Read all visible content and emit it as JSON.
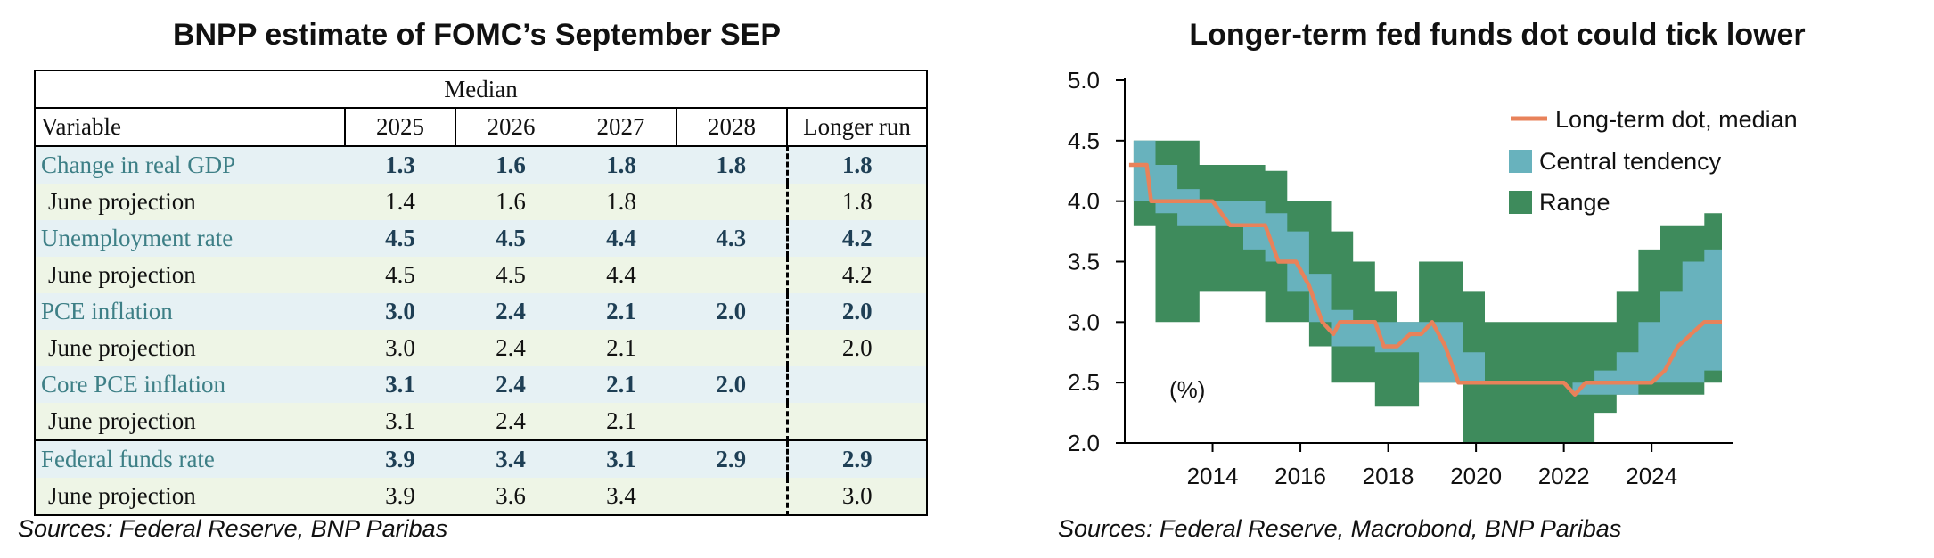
{
  "left": {
    "title": "BNPP estimate of FOMC’s September SEP",
    "source": "Sources: Federal Reserve, BNP Paribas",
    "table": {
      "group_header": "Median",
      "columns": [
        "Variable",
        "2025",
        "2026",
        "2027",
        "2028",
        "Longer run"
      ],
      "rows": [
        {
          "label": "Change in real GDP",
          "kind": "main",
          "values": [
            "1.3",
            "1.6",
            "1.8",
            "1.8",
            "1.8"
          ]
        },
        {
          "label": "June projection",
          "kind": "june",
          "values": [
            "1.4",
            "1.6",
            "1.8",
            "",
            "1.8"
          ]
        },
        {
          "label": "Unemployment rate",
          "kind": "main",
          "values": [
            "4.5",
            "4.5",
            "4.4",
            "4.3",
            "4.2"
          ]
        },
        {
          "label": "June projection",
          "kind": "june",
          "values": [
            "4.5",
            "4.5",
            "4.4",
            "",
            "4.2"
          ]
        },
        {
          "label": "PCE inflation",
          "kind": "main",
          "values": [
            "3.0",
            "2.4",
            "2.1",
            "2.0",
            "2.0"
          ]
        },
        {
          "label": "June projection",
          "kind": "june",
          "values": [
            "3.0",
            "2.4",
            "2.1",
            "",
            "2.0"
          ]
        },
        {
          "label": "Core PCE inflation",
          "kind": "main",
          "values": [
            "3.1",
            "2.4",
            "2.1",
            "2.0",
            ""
          ]
        },
        {
          "label": "June projection",
          "kind": "june",
          "values": [
            "3.1",
            "2.4",
            "2.1",
            "",
            ""
          ]
        },
        {
          "label": "Federal funds rate",
          "kind": "main",
          "values": [
            "3.9",
            "3.4",
            "3.1",
            "2.9",
            "2.9"
          ]
        },
        {
          "label": "June projection",
          "kind": "june",
          "values": [
            "3.9",
            "3.6",
            "3.4",
            "",
            "3.0"
          ]
        }
      ]
    }
  },
  "right": {
    "title": "Longer-term fed funds dot could tick lower",
    "source": "Sources: Federal Reserve, Macrobond, BNP Paribas",
    "unit_label": "(%)",
    "legend": [
      {
        "label": "Long-term dot, median",
        "color": "#e8825a",
        "kind": "line"
      },
      {
        "label": "Central tendency",
        "color": "#68b2bd",
        "kind": "box"
      },
      {
        "label": "Range",
        "color": "#3e8b5c",
        "kind": "box"
      }
    ]
  },
  "chart_data": [
    {
      "type": "table",
      "title": "BNPP estimate of FOMC’s September SEP",
      "columns": [
        "Variable",
        "2025",
        "2026",
        "2027",
        "2028",
        "Longer run"
      ],
      "rows": [
        [
          "Change in real GDP",
          "1.3",
          "1.6",
          "1.8",
          "1.8",
          "1.8"
        ],
        [
          "June projection",
          "1.4",
          "1.6",
          "1.8",
          "",
          "1.8"
        ],
        [
          "Unemployment rate",
          "4.5",
          "4.5",
          "4.4",
          "4.3",
          "4.2"
        ],
        [
          "June projection",
          "4.5",
          "4.5",
          "4.4",
          "",
          "4.2"
        ],
        [
          "PCE inflation",
          "3.0",
          "2.4",
          "2.1",
          "2.0",
          "2.0"
        ],
        [
          "June projection",
          "3.0",
          "2.4",
          "2.1",
          "",
          "2.0"
        ],
        [
          "Core PCE inflation",
          "3.1",
          "2.4",
          "2.1",
          "2.0",
          ""
        ],
        [
          "June projection",
          "3.1",
          "2.4",
          "2.1",
          "",
          ""
        ],
        [
          "Federal funds rate",
          "3.9",
          "3.4",
          "3.1",
          "2.9",
          "2.9"
        ],
        [
          "June projection",
          "3.9",
          "3.6",
          "3.4",
          "",
          "3.0"
        ]
      ]
    },
    {
      "type": "area",
      "title": "Longer-term fed funds dot could tick lower",
      "ylabel": "(%)",
      "xlim": [
        2012.0,
        2025.6
      ],
      "ylim": [
        2.0,
        5.0
      ],
      "xticks": [
        2014,
        2016,
        2018,
        2020,
        2022,
        2024
      ],
      "xtick_labels": [
        "2014",
        "2016",
        "2018",
        "2020",
        "2022",
        "2024"
      ],
      "yticks": [
        2.0,
        2.5,
        3.0,
        3.5,
        4.0,
        4.5,
        5.0
      ],
      "ytick_labels": [
        "2.0",
        "2.5",
        "3.0",
        "3.5",
        "4.0",
        "4.5",
        "5.0"
      ],
      "legend_position": "top-right",
      "grid": false,
      "series": [
        {
          "name": "Range",
          "kind": "band",
          "color": "#3e8b5c",
          "x": [
            2012.2,
            2012.7,
            2013.2,
            2013.7,
            2014.2,
            2014.7,
            2015.2,
            2015.7,
            2016.2,
            2016.7,
            2017.2,
            2017.7,
            2018.2,
            2018.7,
            2019.2,
            2019.7,
            2020.2,
            2020.7,
            2021.2,
            2021.7,
            2022.2,
            2022.7,
            2023.2,
            2023.7,
            2024.2,
            2024.7,
            2025.2,
            2025.6
          ],
          "low": [
            3.8,
            3.0,
            3.0,
            3.25,
            3.25,
            3.25,
            3.0,
            3.0,
            2.8,
            2.5,
            2.5,
            2.3,
            2.3,
            2.5,
            2.5,
            2.0,
            2.0,
            2.0,
            2.0,
            2.0,
            2.0,
            2.25,
            2.4,
            2.4,
            2.4,
            2.4,
            2.5,
            2.5
          ],
          "high": [
            4.5,
            4.5,
            4.5,
            4.3,
            4.3,
            4.3,
            4.25,
            4.0,
            4.0,
            3.75,
            3.5,
            3.25,
            3.0,
            3.5,
            3.5,
            3.25,
            3.0,
            3.0,
            3.0,
            3.0,
            3.0,
            3.0,
            3.25,
            3.6,
            3.8,
            3.8,
            3.9,
            3.9
          ]
        },
        {
          "name": "Central tendency",
          "kind": "band",
          "color": "#68b2bd",
          "x": [
            2012.2,
            2012.7,
            2013.2,
            2013.7,
            2014.2,
            2014.7,
            2015.2,
            2015.7,
            2016.2,
            2016.7,
            2017.2,
            2017.7,
            2018.2,
            2018.7,
            2019.2,
            2019.7,
            2020.2,
            2020.7,
            2021.2,
            2021.7,
            2022.2,
            2022.7,
            2023.2,
            2023.7,
            2024.2,
            2024.7,
            2025.2,
            2025.6
          ],
          "low": [
            4.0,
            3.9,
            3.8,
            3.8,
            3.8,
            3.6,
            3.5,
            3.25,
            3.0,
            2.8,
            2.8,
            2.75,
            2.75,
            2.5,
            2.5,
            2.5,
            2.5,
            2.5,
            2.5,
            2.5,
            2.4,
            2.4,
            2.4,
            2.5,
            2.5,
            2.5,
            2.6,
            2.6
          ],
          "high": [
            4.5,
            4.3,
            4.1,
            4.0,
            4.0,
            4.0,
            3.9,
            3.75,
            3.4,
            3.1,
            3.0,
            3.0,
            3.0,
            3.0,
            3.0,
            2.75,
            2.5,
            2.5,
            2.5,
            2.5,
            2.5,
            2.6,
            2.75,
            3.0,
            3.25,
            3.5,
            3.6,
            3.6
          ]
        },
        {
          "name": "Long-term dot, median",
          "kind": "line",
          "color": "#e8825a",
          "x": [
            2012.1,
            2012.5,
            2012.6,
            2013.5,
            2014.0,
            2014.4,
            2014.6,
            2015.2,
            2015.5,
            2015.9,
            2016.2,
            2016.5,
            2016.75,
            2016.9,
            2017.2,
            2017.7,
            2017.9,
            2018.2,
            2018.5,
            2018.75,
            2019.0,
            2019.3,
            2019.6,
            2020.0,
            2020.5,
            2021.0,
            2021.5,
            2022.0,
            2022.25,
            2022.5,
            2023.0,
            2023.5,
            2023.8,
            2024.0,
            2024.3,
            2024.6,
            2024.9,
            2025.2,
            2025.6
          ],
          "y": [
            4.3,
            4.3,
            4.0,
            4.0,
            4.0,
            3.8,
            3.8,
            3.8,
            3.5,
            3.5,
            3.3,
            3.0,
            2.9,
            3.0,
            3.0,
            3.0,
            2.8,
            2.8,
            2.9,
            2.9,
            3.0,
            2.8,
            2.5,
            2.5,
            2.5,
            2.5,
            2.5,
            2.5,
            2.4,
            2.5,
            2.5,
            2.5,
            2.5,
            2.5,
            2.6,
            2.8,
            2.9,
            3.0,
            3.0
          ]
        }
      ]
    }
  ]
}
